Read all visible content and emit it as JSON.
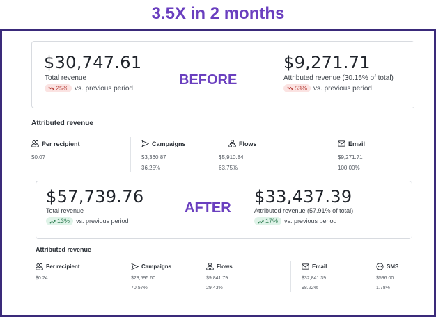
{
  "headline": "3.5X in 2 months",
  "before": {
    "tag": "BEFORE",
    "total_value": "$30,747.61",
    "total_label": "Total revenue",
    "total_change": "25%",
    "total_direction": "down",
    "attr_value": "$9,271.71",
    "attr_label": "Attributed revenue (30.15% of total)",
    "attr_change": "53%",
    "attr_direction": "down",
    "vs_text": "vs. previous period",
    "breakdown": {
      "title": "Attributed revenue",
      "columns": [
        {
          "label": "Per recipient",
          "icon": "people-icon",
          "value": "$0.07",
          "pct": ""
        },
        {
          "label": "Campaigns",
          "icon": "send-icon",
          "value": "$3,360.87",
          "pct": "36.25%"
        },
        {
          "label": "Flows",
          "icon": "flow-icon",
          "value": "$5,910.84",
          "pct": "63.75%"
        },
        {
          "label": "Email",
          "icon": "mail-icon",
          "value": "$9,271.71",
          "pct": "100.00%"
        }
      ]
    }
  },
  "after": {
    "tag": "AFTER",
    "total_value": "$57,739.76",
    "total_label": "Total revenue",
    "total_change": "13%",
    "total_direction": "up",
    "attr_value": "$33,437.39",
    "attr_label": "Attributed revenue (57.91% of total)",
    "attr_change": "17%",
    "attr_direction": "up",
    "vs_text": "vs. previous period",
    "breakdown": {
      "title": "Attributed revenue",
      "columns": [
        {
          "label": "Per recipient",
          "icon": "people-icon",
          "value": "$0.24",
          "pct": ""
        },
        {
          "label": "Campaigns",
          "icon": "send-icon",
          "value": "$23,595.60",
          "pct": "70.57%"
        },
        {
          "label": "Flows",
          "icon": "flow-icon",
          "value": "$9,841.79",
          "pct": "29.43%"
        },
        {
          "label": "Email",
          "icon": "mail-icon",
          "value": "$32,841.39",
          "pct": "98.22%"
        },
        {
          "label": "SMS",
          "icon": "sms-icon",
          "value": "$596.00",
          "pct": "1.78%"
        }
      ]
    }
  },
  "colors": {
    "accent": "#6a3fbf",
    "frame": "#3a2a7a",
    "down_bg": "#fbe3e2",
    "down_fg": "#b7413a",
    "up_bg": "#dff3e8",
    "up_fg": "#2f7d52"
  }
}
